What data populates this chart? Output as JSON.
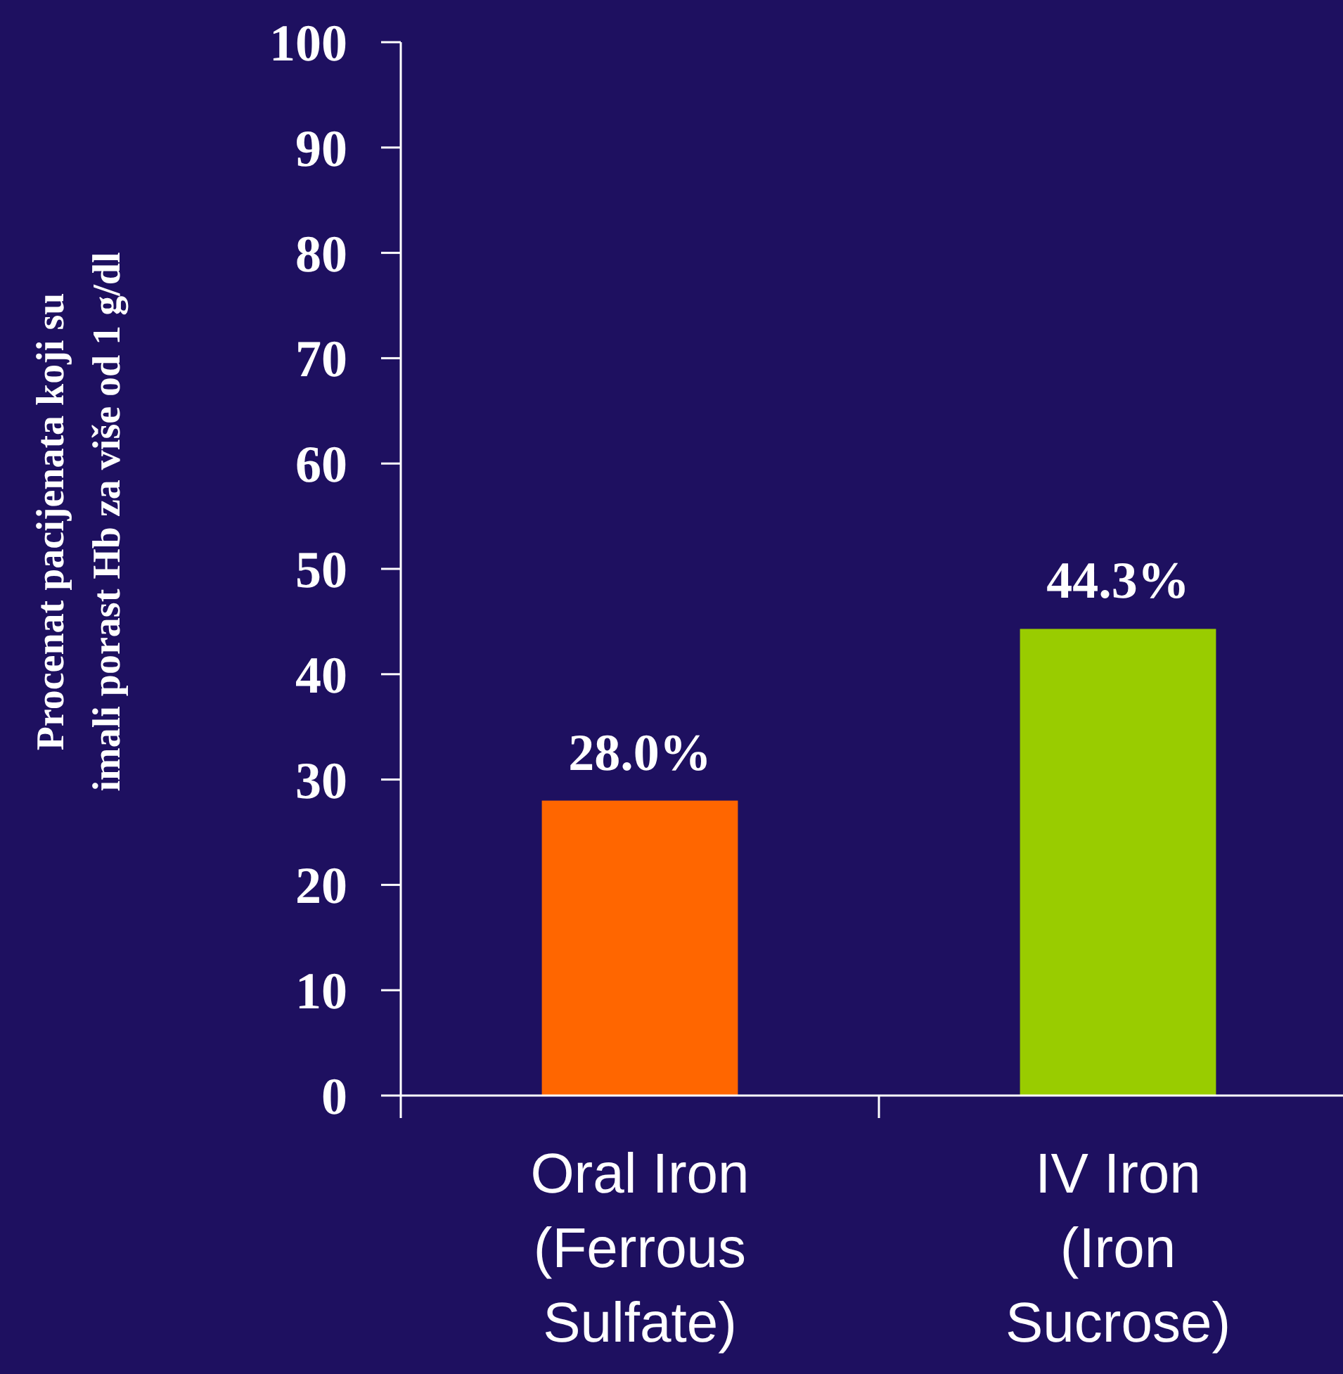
{
  "chart_data": {
    "type": "bar",
    "ylabel": "Procenat pacijenata koji su\nimali porast Hb za više od 1 g/dl",
    "categories": [
      "Oral Iron\n(Ferrous\nSulfate)",
      "IV Iron\n(Iron\nSucrose)"
    ],
    "values": [
      28.0,
      44.3
    ],
    "colors": [
      "#ff6600",
      "#99cc00"
    ],
    "value_labels": [
      "28.0%",
      "44.3%"
    ],
    "ylim": [
      0,
      100
    ],
    "yticks": [
      0,
      10,
      20,
      30,
      40,
      50,
      60,
      70,
      80,
      90,
      100
    ],
    "grid": false
  }
}
